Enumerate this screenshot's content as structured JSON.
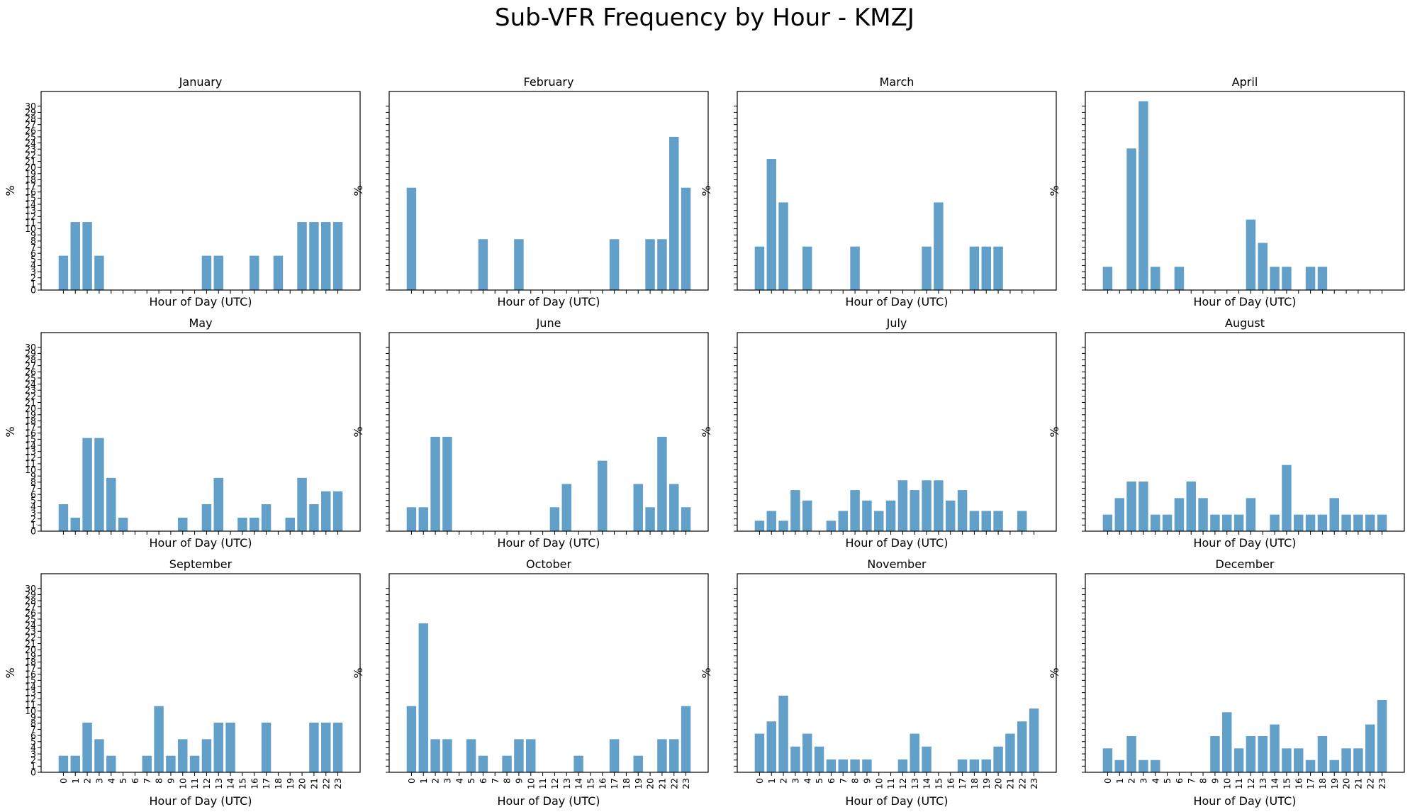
{
  "title": "Sub-VFR Frequency by Hour - KMZJ",
  "chart_data": {
    "type": "bar",
    "xlabel": "Hour of Day (UTC)",
    "ylabel": "%",
    "categories": [
      0,
      1,
      2,
      3,
      4,
      5,
      6,
      7,
      8,
      9,
      10,
      11,
      12,
      13,
      14,
      15,
      16,
      17,
      18,
      19,
      20,
      21,
      22,
      23
    ],
    "yticks": [
      0,
      1,
      2,
      3,
      4,
      5,
      6,
      7,
      8,
      9,
      10,
      11,
      12,
      13,
      14,
      15,
      16,
      17,
      18,
      19,
      20,
      21,
      22,
      23,
      24,
      25,
      26,
      27,
      28,
      29,
      30
    ],
    "ylim": [
      0,
      32.4
    ],
    "sharey": true,
    "grid": false,
    "panels": [
      {
        "title": "January",
        "values": [
          5.6,
          11.1,
          11.1,
          5.6,
          0,
          0,
          0,
          0,
          0,
          0,
          0,
          0,
          5.6,
          5.6,
          0,
          0,
          5.6,
          0,
          5.6,
          0,
          11.1,
          11.1,
          11.1,
          11.1
        ]
      },
      {
        "title": "February",
        "values": [
          16.7,
          0,
          0,
          0,
          0,
          0,
          8.3,
          0,
          0,
          8.3,
          0,
          0,
          0,
          0,
          0,
          0,
          0,
          8.3,
          0,
          0,
          8.3,
          8.3,
          25.0,
          16.7
        ]
      },
      {
        "title": "March",
        "values": [
          7.1,
          21.4,
          14.3,
          0,
          7.1,
          0,
          0,
          0,
          7.1,
          0,
          0,
          0,
          0,
          0,
          7.1,
          14.3,
          0,
          0,
          7.1,
          7.1,
          7.1,
          0,
          0,
          0
        ]
      },
      {
        "title": "April",
        "values": [
          3.8,
          0,
          23.1,
          30.8,
          3.8,
          0,
          3.8,
          0,
          0,
          0,
          0,
          0,
          11.5,
          7.7,
          3.8,
          3.8,
          0,
          3.8,
          3.8,
          0,
          0,
          0,
          0,
          0
        ]
      },
      {
        "title": "May",
        "values": [
          4.4,
          2.2,
          15.2,
          15.2,
          8.7,
          2.2,
          0,
          0,
          0,
          0,
          2.2,
          0,
          4.4,
          8.7,
          0,
          2.2,
          2.2,
          4.4,
          0,
          2.2,
          8.7,
          4.4,
          6.5,
          6.5
        ]
      },
      {
        "title": "June",
        "values": [
          3.9,
          3.9,
          15.4,
          15.4,
          0,
          0,
          0,
          0,
          0,
          0,
          0,
          0,
          3.9,
          7.7,
          0,
          0,
          11.5,
          0,
          0,
          7.7,
          3.9,
          15.4,
          7.7,
          3.9
        ]
      },
      {
        "title": "July",
        "values": [
          1.7,
          3.3,
          1.7,
          6.7,
          5.0,
          0,
          1.7,
          3.3,
          6.7,
          5.0,
          3.3,
          5.0,
          8.3,
          6.7,
          8.3,
          8.3,
          5.0,
          6.7,
          3.3,
          3.3,
          3.3,
          0,
          3.3,
          0
        ]
      },
      {
        "title": "August",
        "values": [
          2.7,
          5.4,
          8.1,
          8.1,
          2.7,
          2.7,
          5.4,
          8.1,
          5.4,
          2.7,
          2.7,
          2.7,
          5.4,
          0,
          2.7,
          10.8,
          2.7,
          2.7,
          2.7,
          5.4,
          2.7,
          2.7,
          2.7,
          2.7
        ]
      },
      {
        "title": "September",
        "values": [
          2.7,
          2.7,
          8.1,
          5.4,
          2.7,
          0,
          0,
          2.7,
          10.8,
          2.7,
          5.4,
          2.7,
          5.4,
          8.1,
          8.1,
          0,
          0,
          8.1,
          0,
          0,
          0,
          8.1,
          8.1,
          8.1
        ]
      },
      {
        "title": "October",
        "values": [
          10.8,
          24.3,
          5.4,
          5.4,
          0,
          5.4,
          2.7,
          0,
          2.7,
          5.4,
          5.4,
          0,
          0,
          0,
          2.7,
          0,
          0,
          5.4,
          0,
          2.7,
          0,
          5.4,
          5.4,
          10.8
        ]
      },
      {
        "title": "November",
        "values": [
          6.3,
          8.3,
          12.5,
          4.2,
          6.3,
          4.2,
          2.1,
          2.1,
          2.1,
          2.1,
          0,
          0,
          2.1,
          6.3,
          4.2,
          0,
          0,
          2.1,
          2.1,
          2.1,
          4.2,
          6.3,
          8.3,
          10.4
        ]
      },
      {
        "title": "December",
        "values": [
          3.9,
          2.0,
          5.9,
          2.0,
          2.0,
          0,
          0,
          0,
          0,
          5.9,
          9.8,
          3.9,
          5.9,
          5.9,
          7.8,
          3.9,
          3.9,
          2.0,
          5.9,
          2.0,
          3.9,
          3.9,
          7.8,
          11.8
        ]
      }
    ]
  }
}
